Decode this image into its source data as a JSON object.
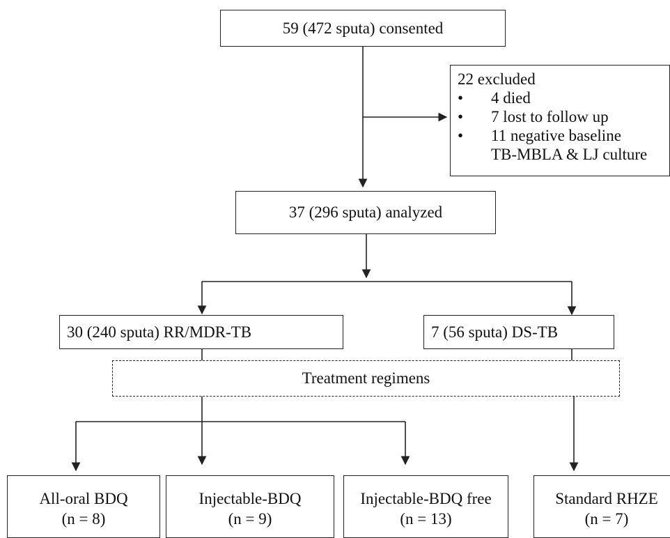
{
  "consented": "59 (472 sputa) consented",
  "excluded": {
    "title": "22 excluded",
    "items": [
      "4 died",
      "7 lost to follow up",
      "11 negative baseline"
    ],
    "continuation": "TB-MBLA & LJ culture"
  },
  "analyzed": "37 (296 sputa) analyzed",
  "mdr": "30 (240 sputa) RR/MDR-TB",
  "ds": "7 (56 sputa) DS-TB",
  "treatment": "Treatment regimens",
  "groups": [
    {
      "name": "All-oral BDQ",
      "n": "(n = 8)"
    },
    {
      "name": "Injectable-BDQ",
      "n": "(n = 9)"
    },
    {
      "name": "Injectable-BDQ free",
      "n": "(n = 13)"
    },
    {
      "name": "Standard RHZE",
      "n": "(n = 7)"
    }
  ]
}
